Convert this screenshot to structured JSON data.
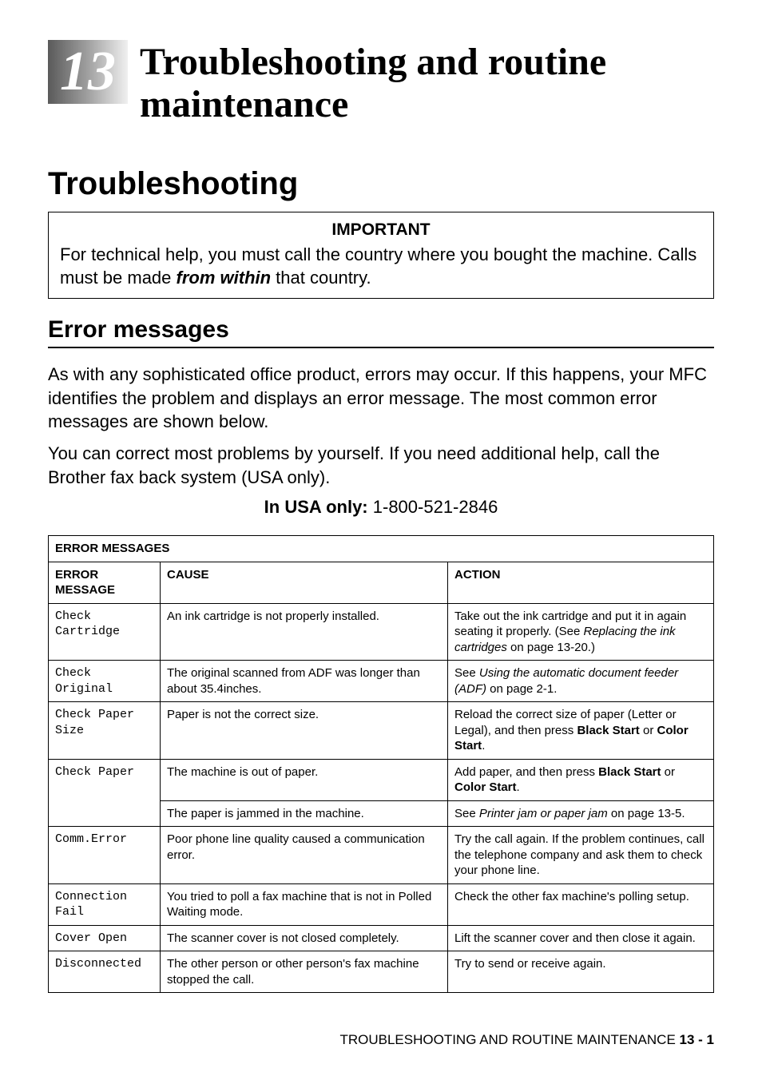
{
  "chapter": {
    "number": "13",
    "title_line1": "Troubleshooting and routine",
    "title_line2": "maintenance"
  },
  "h1": "Troubleshooting",
  "important": {
    "label": "IMPORTANT",
    "text_before": "For technical help, you must call the country where you bought the machine. Calls must be made ",
    "emph": "from within",
    "text_after": " that country."
  },
  "h2": "Error messages",
  "para1": "As with any sophisticated office product, errors may occur. If this happens, your MFC identifies the problem and displays an error message. The most common error messages are shown below.",
  "para2": "You can correct most problems by yourself. If you need additional help, call the Brother fax back system (USA only).",
  "usa": {
    "label": "In USA only:",
    "number": " 1-800-521-2846"
  },
  "table": {
    "title": "ERROR MESSAGES",
    "headers": {
      "col1": "ERROR MESSAGE",
      "col2": "CAUSE",
      "col3": "ACTION"
    },
    "rows": [
      {
        "msg_line1": "Check",
        "msg_line2": "Cartridge",
        "cause": "An ink cartridge is not properly installed.",
        "action_before": "Take out the ink cartridge and put it in again seating it properly. (See ",
        "action_ital": "Replacing the ink cartridges",
        "action_after": " on page 13-20.)"
      },
      {
        "msg_line1": "Check",
        "msg_line2": "Original",
        "cause": "The original scanned from ADF was longer than about 35.4inches.",
        "action_before": "See ",
        "action_ital": "Using the automatic document feeder (ADF)",
        "action_after": " on page 2-1."
      },
      {
        "msg_line1": "Check Paper",
        "msg_line2": "Size",
        "cause": "Paper is not the correct size.",
        "action_before": "Reload the correct size of paper (Letter or Legal), and then press ",
        "action_bold1": "Black Start",
        "action_mid": " or ",
        "action_bold2": "Color Start",
        "action_after": "."
      },
      {
        "msg_line1": "Check Paper",
        "msg_line2": "",
        "cause": "The machine is out of paper.",
        "action_before": "Add paper, and then press ",
        "action_bold1": "Black Start",
        "action_mid": " or ",
        "action_bold2": "Color Start",
        "action_after": "."
      },
      {
        "msg_line1": "",
        "msg_line2": "",
        "cause": "The paper is jammed in the machine.",
        "action_before": "See ",
        "action_ital": "Printer jam or paper jam",
        "action_after": " on page 13-5."
      },
      {
        "msg_line1": "Comm.Error",
        "msg_line2": "",
        "cause": "Poor phone line quality caused a communication error.",
        "action_plain": "Try the call again. If the problem continues, call the telephone company and ask them to check your phone line."
      },
      {
        "msg_line1": "Connection",
        "msg_line2": "Fail",
        "cause": "You tried to poll a fax machine that is not in Polled Waiting mode.",
        "action_plain": "Check the other fax machine's polling setup."
      },
      {
        "msg_line1": "Cover Open",
        "msg_line2": "",
        "cause": "The scanner cover is not closed completely.",
        "action_plain": "Lift the scanner cover and then close it again."
      },
      {
        "msg_line1": "Disconnected",
        "msg_line2": "",
        "cause": "The other person or other person's fax machine stopped the call.",
        "action_plain": "Try to send or receive again."
      }
    ]
  },
  "footer": {
    "text": "TROUBLESHOOTING AND ROUTINE MAINTENANCE   ",
    "page": "13 - 1"
  }
}
